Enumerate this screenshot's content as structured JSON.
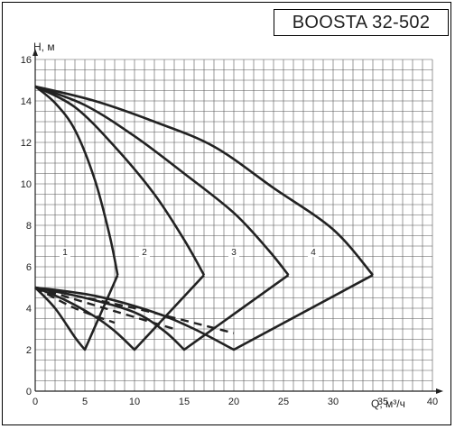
{
  "chart_data": {
    "type": "line",
    "title": "BOOSTA 32-502",
    "xlabel": "Q, м³/ч",
    "ylabel": "H, м",
    "xlim": [
      0,
      40
    ],
    "ylim": [
      0,
      16
    ],
    "x_ticks": [
      0,
      5,
      10,
      15,
      20,
      25,
      30,
      35,
      40
    ],
    "y_ticks": [
      0,
      2,
      4,
      6,
      8,
      10,
      12,
      14,
      16
    ],
    "grid": true,
    "line_color": "#222222",
    "series": [
      {
        "name": "1",
        "label_at": [
          3,
          6.6
        ],
        "head_curve": [
          [
            0,
            14.7
          ],
          [
            2,
            13.9
          ],
          [
            4,
            12.6
          ],
          [
            6,
            10.2
          ],
          [
            7.5,
            7.5
          ],
          [
            8.3,
            5.6
          ]
        ],
        "min_curve": [
          [
            0,
            5.0
          ],
          [
            2,
            4.0
          ],
          [
            4,
            2.6
          ],
          [
            5,
            2.0
          ],
          [
            8.3,
            5.6
          ]
        ],
        "dashed_curve": [
          [
            0,
            5.0
          ],
          [
            4,
            4.0
          ],
          [
            8,
            3.3
          ]
        ]
      },
      {
        "name": "2",
        "label_at": [
          11,
          6.6
        ],
        "head_curve": [
          [
            0,
            14.7
          ],
          [
            4,
            13.7
          ],
          [
            8,
            11.8
          ],
          [
            12,
            9.5
          ],
          [
            15,
            7.3
          ],
          [
            17,
            5.6
          ]
        ],
        "min_curve": [
          [
            0,
            5.0
          ],
          [
            3,
            4.4
          ],
          [
            6,
            3.6
          ],
          [
            8,
            2.9
          ],
          [
            10,
            2.0
          ],
          [
            17,
            5.6
          ]
        ],
        "dashed_curve": [
          [
            0,
            5.0
          ],
          [
            7,
            4.0
          ],
          [
            14,
            3.0
          ]
        ]
      },
      {
        "name": "3",
        "label_at": [
          20,
          6.6
        ],
        "head_curve": [
          [
            0,
            14.7
          ],
          [
            5,
            13.8
          ],
          [
            10,
            12.3
          ],
          [
            15,
            10.5
          ],
          [
            20,
            8.6
          ],
          [
            23.5,
            6.8
          ],
          [
            25.5,
            5.6
          ]
        ],
        "min_curve": [
          [
            0,
            5.0
          ],
          [
            5,
            4.5
          ],
          [
            10,
            3.8
          ],
          [
            13,
            2.9
          ],
          [
            15,
            2.0
          ],
          [
            25.5,
            5.6
          ]
        ],
        "dashed_curve": [
          [
            0,
            5.0
          ],
          [
            10,
            4.0
          ],
          [
            20,
            2.8
          ]
        ]
      },
      {
        "name": "4",
        "label_at": [
          28,
          6.6
        ],
        "head_curve": [
          [
            0,
            14.7
          ],
          [
            6,
            14.0
          ],
          [
            12,
            13.0
          ],
          [
            18,
            11.8
          ],
          [
            24,
            9.8
          ],
          [
            30,
            7.8
          ],
          [
            34,
            5.6
          ]
        ],
        "min_curve": [
          [
            0,
            5.0
          ],
          [
            6,
            4.6
          ],
          [
            12,
            3.8
          ],
          [
            16,
            3.0
          ],
          [
            20,
            2.0
          ],
          [
            34,
            5.6
          ]
        ],
        "dashed_curve": []
      }
    ]
  }
}
